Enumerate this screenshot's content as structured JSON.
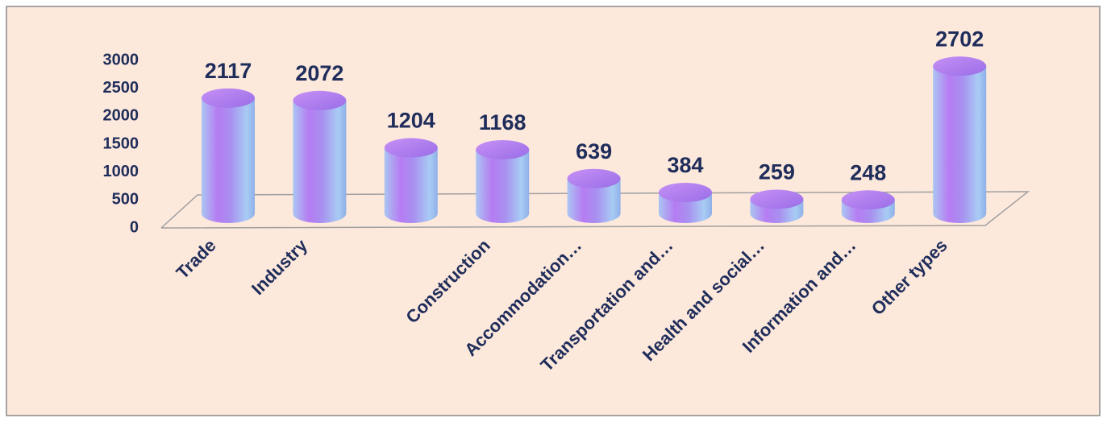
{
  "chart_data": {
    "type": "bar",
    "categories": [
      "Trade",
      "Industry",
      null,
      "Construction",
      "Accommodation…",
      "Transportation and…",
      "Health and social…",
      "Information and…",
      "Other types"
    ],
    "values": [
      2117,
      2072,
      1204,
      1168,
      639,
      384,
      259,
      248,
      2702
    ],
    "ylim": [
      0,
      3000
    ],
    "yticks": [
      0,
      500,
      1000,
      1500,
      2000,
      2500,
      3000
    ],
    "grid": false
  }
}
